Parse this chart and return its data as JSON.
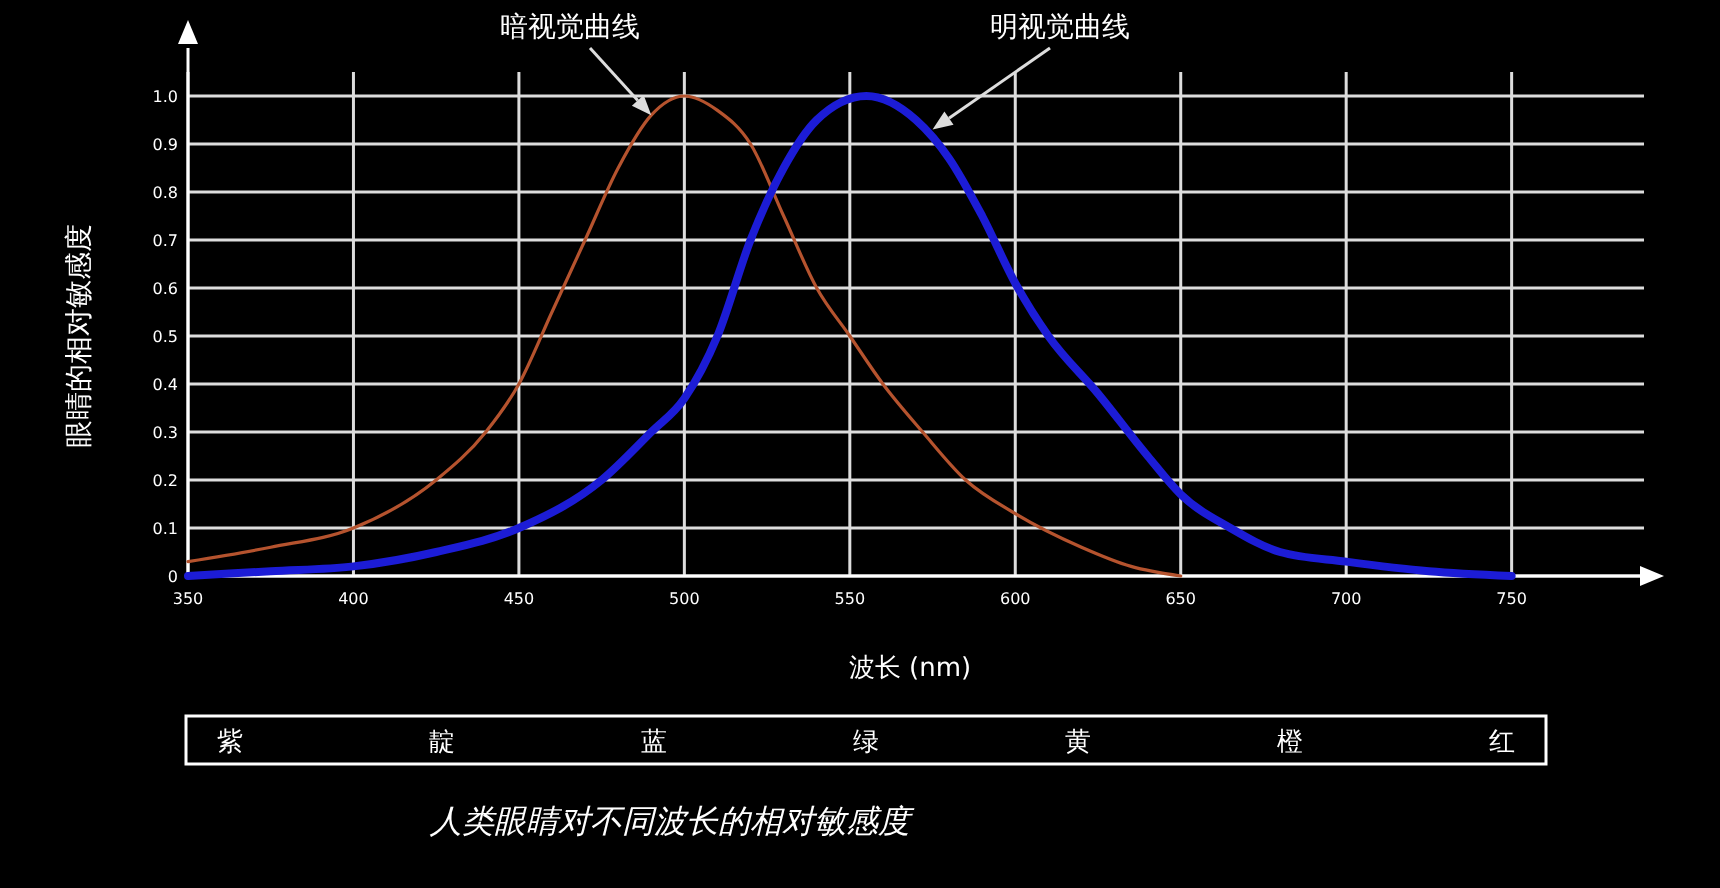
{
  "chart_data": {
    "type": "line",
    "xlabel": "波长 (nm)",
    "ylabel": "眼睛的相对敏感度",
    "xlim": [
      350,
      790
    ],
    "ylim": [
      0,
      1.1
    ],
    "xticks": [
      350,
      400,
      450,
      500,
      550,
      600,
      650,
      700,
      750
    ],
    "yticks": [
      0,
      0.1,
      0.2,
      0.3,
      0.4,
      0.5,
      0.6,
      0.7,
      0.8,
      0.9,
      {
        "value": 1,
        "label": "1.0"
      }
    ],
    "grid": true,
    "series": [
      {
        "name": "暗视觉曲线",
        "color": "#b5532e",
        "x": [
          350,
          375,
          400,
          425,
          440,
          450,
          460,
          470,
          480,
          490,
          500,
          510,
          520,
          530,
          540,
          550,
          560,
          572,
          585,
          600,
          620,
          635,
          650
        ],
        "values": [
          0.03,
          0.06,
          0.1,
          0.2,
          0.3,
          0.4,
          0.55,
          0.7,
          0.85,
          0.96,
          1.0,
          0.97,
          0.9,
          0.75,
          0.6,
          0.5,
          0.4,
          0.3,
          0.2,
          0.13,
          0.06,
          0.02,
          0.0
        ]
      },
      {
        "name": "明视觉曲线",
        "color": "#1c1cd6",
        "x": [
          350,
          375,
          400,
          425,
          450,
          475,
          490,
          500,
          510,
          520,
          530,
          540,
          555,
          570,
          580,
          590,
          600,
          610,
          625,
          640,
          650,
          665,
          680,
          700,
          725,
          750
        ],
        "values": [
          0.0,
          0.01,
          0.02,
          0.05,
          0.1,
          0.2,
          0.3,
          0.37,
          0.5,
          0.7,
          0.85,
          0.95,
          1.0,
          0.95,
          0.87,
          0.75,
          0.61,
          0.5,
          0.38,
          0.25,
          0.17,
          0.1,
          0.05,
          0.03,
          0.01,
          0.0
        ]
      }
    ],
    "annotations": [
      "紫",
      "靛",
      "蓝",
      "绿",
      "黄",
      "橙",
      "红",
      "人类眼睛对不同波长的相对敏感度"
    ]
  }
}
